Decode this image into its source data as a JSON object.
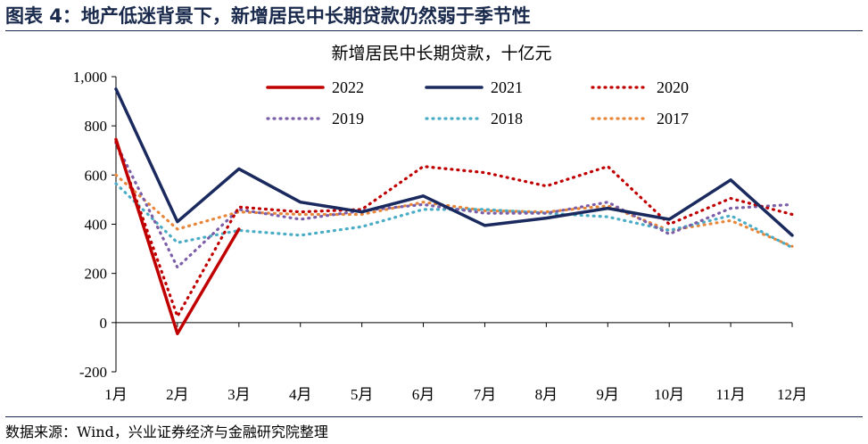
{
  "figure": {
    "title": "图表 4：地产低迷背景下，新增居民中长期贷款仍然弱于季节性",
    "source": "数据来源：Wind，兴业证券经济与金融研究院整理"
  },
  "chart_data": {
    "type": "line",
    "title": "新增居民中长期贷款，十亿元",
    "xlabel": "",
    "ylabel": "",
    "categories": [
      "1月",
      "2月",
      "3月",
      "4月",
      "5月",
      "6月",
      "7月",
      "8月",
      "9月",
      "10月",
      "11月",
      "12月"
    ],
    "ylim": [
      -200,
      1000
    ],
    "yticks": [
      -200,
      0,
      200,
      400,
      600,
      800,
      1000
    ],
    "ytick_labels": [
      "-200",
      "0",
      "200",
      "400",
      "600",
      "800",
      "1,000"
    ],
    "legend_position": "top",
    "series": [
      {
        "name": "2022",
        "color": "#c00000",
        "style": "solid",
        "values": [
          745,
          -45,
          380,
          null,
          null,
          null,
          null,
          null,
          null,
          null,
          null,
          null
        ]
      },
      {
        "name": "2021",
        "color": "#1a2a5e",
        "style": "solid",
        "values": [
          950,
          410,
          625,
          490,
          450,
          515,
          395,
          425,
          465,
          420,
          580,
          355
        ]
      },
      {
        "name": "2020",
        "color": "#c00000",
        "style": "dotted",
        "values": [
          735,
          25,
          470,
          450,
          460,
          635,
          610,
          555,
          635,
          400,
          505,
          440
        ]
      },
      {
        "name": "2019",
        "color": "#7b5ea7",
        "style": "dotted",
        "values": [
          730,
          225,
          460,
          420,
          455,
          480,
          445,
          445,
          490,
          360,
          465,
          480
        ]
      },
      {
        "name": "2018",
        "color": "#4bacc6",
        "style": "dotted",
        "values": [
          565,
          325,
          375,
          355,
          390,
          460,
          460,
          445,
          430,
          375,
          435,
          305
        ]
      },
      {
        "name": "2017",
        "color": "#e8873a",
        "style": "dotted",
        "values": [
          600,
          380,
          450,
          440,
          440,
          490,
          455,
          450,
          475,
          375,
          415,
          310
        ]
      }
    ]
  }
}
